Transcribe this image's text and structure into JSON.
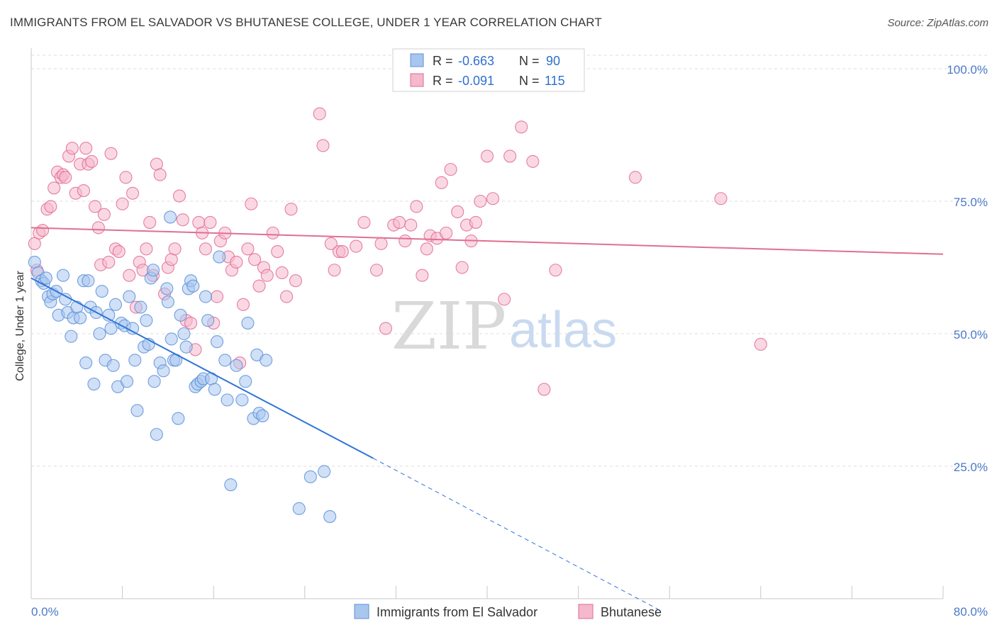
{
  "title": "IMMIGRANTS FROM EL SALVADOR VS BHUTANESE COLLEGE, UNDER 1 YEAR CORRELATION CHART",
  "source": "Source: ZipAtlas.com",
  "watermark": {
    "zip": "ZIP",
    "atlas": "atlas"
  },
  "colors": {
    "blue": "#5b8fd9",
    "blue_fill": "#a9c6ee",
    "pink": "#e06a92",
    "pink_fill": "#f5b8cc",
    "axis_label": "#4a7ac8"
  },
  "chart_data": {
    "type": "scatter",
    "xlabel": "",
    "ylabel": "College, Under 1 year",
    "xlim": [
      0,
      80
    ],
    "ylim": [
      0,
      100
    ],
    "x_tick_labels": [
      "0.0%",
      "80.0%"
    ],
    "y_ticks": [
      25,
      50,
      75,
      100
    ],
    "y_tick_labels": [
      "25.0%",
      "50.0%",
      "75.0%",
      "100.0%"
    ],
    "grid": true,
    "legend_placement": "top-center",
    "series": [
      {
        "name": "Immigrants from El Salvador",
        "stats": {
          "r_label": "R =",
          "r": "-0.663",
          "n_label": "N =",
          "n": "90"
        },
        "trend": {
          "x0": 0,
          "y0": 60.5,
          "x1": 30,
          "y1": 26.5,
          "dash_to_x": 55,
          "dash_to_y": -2
        },
        "points": [
          [
            0.3,
            63.5
          ],
          [
            0.6,
            61.5
          ],
          [
            0.9,
            60
          ],
          [
            1.1,
            59.5
          ],
          [
            1.3,
            60.5
          ],
          [
            1.5,
            57
          ],
          [
            1.7,
            56
          ],
          [
            1.9,
            57.5
          ],
          [
            2.2,
            58
          ],
          [
            2.4,
            53.5
          ],
          [
            2.8,
            61
          ],
          [
            3.0,
            56.5
          ],
          [
            3.2,
            54
          ],
          [
            3.5,
            49.5
          ],
          [
            3.7,
            53
          ],
          [
            4.0,
            55
          ],
          [
            4.3,
            53
          ],
          [
            4.6,
            60
          ],
          [
            4.8,
            44.5
          ],
          [
            5.0,
            60
          ],
          [
            5.2,
            55
          ],
          [
            5.5,
            40.5
          ],
          [
            5.7,
            54
          ],
          [
            6.0,
            50
          ],
          [
            6.2,
            58
          ],
          [
            6.5,
            45
          ],
          [
            6.8,
            53.5
          ],
          [
            7.0,
            51
          ],
          [
            7.2,
            44
          ],
          [
            7.4,
            55.5
          ],
          [
            7.6,
            40
          ],
          [
            7.9,
            52
          ],
          [
            8.2,
            51.5
          ],
          [
            8.4,
            41
          ],
          [
            8.6,
            57
          ],
          [
            8.9,
            51
          ],
          [
            9.1,
            45
          ],
          [
            9.3,
            35.5
          ],
          [
            9.6,
            55
          ],
          [
            9.9,
            47.5
          ],
          [
            10.1,
            52.5
          ],
          [
            10.3,
            48
          ],
          [
            10.5,
            60.5
          ],
          [
            10.7,
            62
          ],
          [
            10.8,
            41
          ],
          [
            11.0,
            31
          ],
          [
            11.3,
            44.5
          ],
          [
            11.6,
            43
          ],
          [
            11.9,
            58.5
          ],
          [
            12.0,
            56
          ],
          [
            12.2,
            72
          ],
          [
            12.3,
            49
          ],
          [
            12.5,
            45
          ],
          [
            12.7,
            45
          ],
          [
            12.9,
            34
          ],
          [
            13.1,
            53.5
          ],
          [
            13.4,
            50
          ],
          [
            13.6,
            47.5
          ],
          [
            13.8,
            58.5
          ],
          [
            14.0,
            60
          ],
          [
            14.2,
            59
          ],
          [
            14.4,
            40
          ],
          [
            14.6,
            40.5
          ],
          [
            14.9,
            41
          ],
          [
            15.1,
            41.5
          ],
          [
            15.3,
            57
          ],
          [
            15.5,
            52.5
          ],
          [
            15.8,
            41.5
          ],
          [
            16.1,
            39.5
          ],
          [
            16.3,
            48.5
          ],
          [
            16.5,
            64.5
          ],
          [
            17.0,
            45
          ],
          [
            17.2,
            37.5
          ],
          [
            17.5,
            21.5
          ],
          [
            18.0,
            44
          ],
          [
            18.5,
            37.5
          ],
          [
            18.8,
            41
          ],
          [
            19.0,
            52
          ],
          [
            19.5,
            34
          ],
          [
            19.8,
            46
          ],
          [
            20.0,
            35
          ],
          [
            20.3,
            34.5
          ],
          [
            20.6,
            45
          ],
          [
            23.5,
            17
          ],
          [
            24.5,
            23
          ],
          [
            25.7,
            24
          ],
          [
            26.2,
            15.5
          ]
        ]
      },
      {
        "name": "Bhutanese",
        "stats": {
          "r_label": "R =",
          "r": "-0.091",
          "n_label": "N =",
          "n": "115"
        },
        "trend": {
          "x0": 0,
          "y0": 70,
          "x1": 80,
          "y1": 65
        },
        "points": [
          [
            0.3,
            67
          ],
          [
            0.5,
            62
          ],
          [
            0.7,
            69
          ],
          [
            1.0,
            69.5
          ],
          [
            1.4,
            73.5
          ],
          [
            1.7,
            74
          ],
          [
            2.0,
            77.5
          ],
          [
            2.3,
            80.5
          ],
          [
            2.6,
            79.5
          ],
          [
            2.8,
            80
          ],
          [
            3.0,
            79.5
          ],
          [
            3.3,
            83.5
          ],
          [
            3.6,
            85
          ],
          [
            3.9,
            76.5
          ],
          [
            4.3,
            82
          ],
          [
            4.6,
            77
          ],
          [
            4.8,
            85
          ],
          [
            5.0,
            82
          ],
          [
            5.3,
            82.5
          ],
          [
            5.6,
            74
          ],
          [
            5.9,
            70
          ],
          [
            6.1,
            63
          ],
          [
            6.4,
            72.5
          ],
          [
            6.8,
            63.5
          ],
          [
            7.0,
            84
          ],
          [
            7.4,
            66
          ],
          [
            7.7,
            65.5
          ],
          [
            8.0,
            74.5
          ],
          [
            8.3,
            79.5
          ],
          [
            8.6,
            61
          ],
          [
            8.9,
            76.5
          ],
          [
            9.2,
            55
          ],
          [
            9.5,
            63.5
          ],
          [
            9.8,
            62
          ],
          [
            10.1,
            66
          ],
          [
            10.4,
            71
          ],
          [
            10.7,
            61
          ],
          [
            11.0,
            82
          ],
          [
            11.3,
            80
          ],
          [
            11.7,
            57.5
          ],
          [
            12.0,
            62.5
          ],
          [
            12.3,
            64
          ],
          [
            12.6,
            66
          ],
          [
            13.0,
            76
          ],
          [
            13.3,
            71.5
          ],
          [
            13.6,
            52.5
          ],
          [
            14.0,
            52
          ],
          [
            14.4,
            47
          ],
          [
            14.7,
            71
          ],
          [
            15.0,
            69
          ],
          [
            15.3,
            66
          ],
          [
            15.7,
            71
          ],
          [
            16.0,
            52
          ],
          [
            16.3,
            57
          ],
          [
            16.6,
            67.5
          ],
          [
            17.0,
            69
          ],
          [
            17.3,
            64.5
          ],
          [
            17.6,
            62
          ],
          [
            18.0,
            63.5
          ],
          [
            18.3,
            44.5
          ],
          [
            18.6,
            55.5
          ],
          [
            19.0,
            66
          ],
          [
            19.3,
            74.5
          ],
          [
            19.6,
            64
          ],
          [
            20.0,
            59
          ],
          [
            20.4,
            62.5
          ],
          [
            20.7,
            61
          ],
          [
            21.2,
            69
          ],
          [
            21.6,
            65.5
          ],
          [
            22.0,
            61.5
          ],
          [
            22.4,
            57
          ],
          [
            22.8,
            73.5
          ],
          [
            23.2,
            60
          ],
          [
            25.3,
            91.5
          ],
          [
            25.6,
            85.5
          ],
          [
            26.3,
            67
          ],
          [
            26.6,
            62
          ],
          [
            27.0,
            65.5
          ],
          [
            27.3,
            65.5
          ],
          [
            28.5,
            66.5
          ],
          [
            29.2,
            71
          ],
          [
            30.3,
            62
          ],
          [
            30.7,
            67
          ],
          [
            31.1,
            51
          ],
          [
            31.8,
            70.5
          ],
          [
            32.3,
            71
          ],
          [
            32.8,
            67.5
          ],
          [
            33.3,
            70.5
          ],
          [
            33.8,
            74
          ],
          [
            34.3,
            61
          ],
          [
            34.7,
            66
          ],
          [
            35.0,
            68.5
          ],
          [
            35.6,
            68
          ],
          [
            36.0,
            78.5
          ],
          [
            36.4,
            69
          ],
          [
            36.8,
            81
          ],
          [
            37.4,
            73
          ],
          [
            37.8,
            62.5
          ],
          [
            38.2,
            70.5
          ],
          [
            38.6,
            67.5
          ],
          [
            39.0,
            71
          ],
          [
            39.4,
            75
          ],
          [
            40.0,
            83.5
          ],
          [
            40.5,
            75.5
          ],
          [
            41.5,
            56.5
          ],
          [
            42.0,
            83.5
          ],
          [
            43.0,
            89
          ],
          [
            44.0,
            82.5
          ],
          [
            45.0,
            39.5
          ],
          [
            46.0,
            62
          ],
          [
            53.0,
            79.5
          ],
          [
            60.5,
            75.5
          ],
          [
            64.0,
            48
          ]
        ]
      }
    ]
  }
}
